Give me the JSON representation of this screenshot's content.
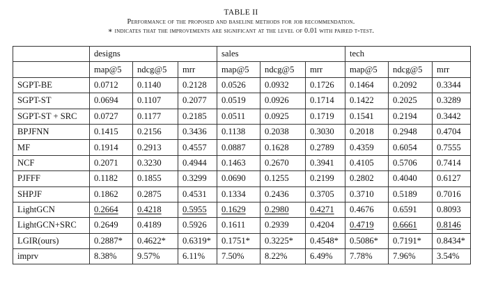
{
  "caption": {
    "title": "TABLE II",
    "line1": "Performance of the proposed and baseline methods for job recommendation.",
    "line2": "∗ indicates that the improvements are significant at the level of 0.01 with paired t-test."
  },
  "table": {
    "groups": [
      "designs",
      "sales",
      "tech"
    ],
    "metrics": [
      "map@5",
      "ndcg@5",
      "mrr",
      "map@5",
      "ndcg@5",
      "mrr",
      "map@5",
      "ndcg@5",
      "mrr"
    ],
    "rows": [
      {
        "method": "SGPT-BE",
        "values": [
          "0.0712",
          "0.1140",
          "0.2128",
          "0.0526",
          "0.0932",
          "0.1726",
          "0.1464",
          "0.2092",
          "0.3344"
        ]
      },
      {
        "method": "SGPT-ST",
        "values": [
          "0.0694",
          "0.1107",
          "0.2077",
          "0.0519",
          "0.0926",
          "0.1714",
          "0.1422",
          "0.2025",
          "0.3289"
        ]
      },
      {
        "method": "SGPT-ST + SRC",
        "values": [
          "0.0727",
          "0.1177",
          "0.2185",
          "0.0511",
          "0.0925",
          "0.1719",
          "0.1541",
          "0.2194",
          "0.3442"
        ]
      },
      {
        "method": "BPJFNN",
        "values": [
          "0.1415",
          "0.2156",
          "0.3436",
          "0.1138",
          "0.2038",
          "0.3030",
          "0.2018",
          "0.2948",
          "0.4704"
        ]
      },
      {
        "method": "MF",
        "values": [
          "0.1914",
          "0.2913",
          "0.4557",
          "0.0887",
          "0.1628",
          "0.2789",
          "0.4359",
          "0.6054",
          "0.7555"
        ]
      },
      {
        "method": "NCF",
        "values": [
          "0.2071",
          "0.3230",
          "0.4944",
          "0.1463",
          "0.2670",
          "0.3941",
          "0.4105",
          "0.5706",
          "0.7414"
        ]
      },
      {
        "method": "PJFFF",
        "values": [
          "0.1182",
          "0.1855",
          "0.3299",
          "0.0690",
          "0.1255",
          "0.2199",
          "0.2802",
          "0.4040",
          "0.6127"
        ]
      },
      {
        "method": "SHPJF",
        "values": [
          "0.1862",
          "0.2875",
          "0.4531",
          "0.1334",
          "0.2436",
          "0.3705",
          "0.3710",
          "0.5189",
          "0.7016"
        ]
      },
      {
        "method": "LightGCN",
        "values": [
          "0.2664",
          "0.4218",
          "0.5955",
          "0.1629",
          "0.2980",
          "0.4271",
          "0.4676",
          "0.6591",
          "0.8093"
        ],
        "underline": [
          0,
          1,
          2,
          3,
          4,
          5
        ]
      },
      {
        "method": "LightGCN+SRC",
        "values": [
          "0.2649",
          "0.4189",
          "0.5926",
          "0.1611",
          "0.2939",
          "0.4204",
          "0.4719",
          "0.6661",
          "0.8146"
        ],
        "underline": [
          6,
          7,
          8
        ]
      },
      {
        "method": "LGIR(ours)",
        "values": [
          "0.2887*",
          "0.4622*",
          "0.6319*",
          "0.1751*",
          "0.3225*",
          "0.4548*",
          "0.5086*",
          "0.7191*",
          "0.8434*"
        ],
        "bold": true
      },
      {
        "method": "imprv",
        "values": [
          "8.38%",
          "9.57%",
          "6.11%",
          "7.50%",
          "8.22%",
          "6.49%",
          "7.78%",
          "7.96%",
          "3.54%"
        ]
      }
    ]
  }
}
